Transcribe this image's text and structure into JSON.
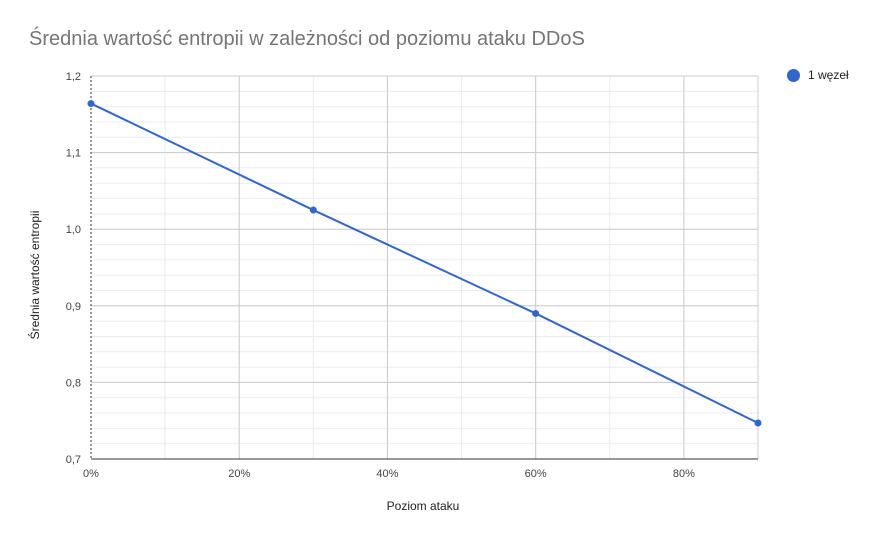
{
  "chart_data": {
    "type": "line",
    "title": "Średnia wartość entropii w zależności od poziomu ataku DDoS",
    "xlabel": "Poziom ataku",
    "ylabel": "Średnia wartość entropii",
    "x": [
      0,
      30,
      60,
      90
    ],
    "series": [
      {
        "name": "1 węzeł",
        "values": [
          1.164,
          1.025,
          0.89,
          0.747
        ]
      }
    ],
    "xlim": [
      0,
      90
    ],
    "ylim": [
      0.7,
      1.2
    ],
    "x_ticks": [
      "0%",
      "20%",
      "40%",
      "60%",
      "80%"
    ],
    "x_tick_values": [
      0,
      20,
      40,
      60,
      80
    ],
    "y_ticks": [
      "0,7",
      "0,8",
      "0,9",
      "1,0",
      "1,1",
      "1,2"
    ],
    "y_tick_values": [
      0.7,
      0.8,
      0.9,
      1.0,
      1.1,
      1.2
    ],
    "grid": true,
    "legend_position": "top-right",
    "colors": {
      "series": "#3366cc",
      "major_grid": "#cccccc",
      "minor_grid": "#ebebeb",
      "axis": "#333333"
    }
  }
}
